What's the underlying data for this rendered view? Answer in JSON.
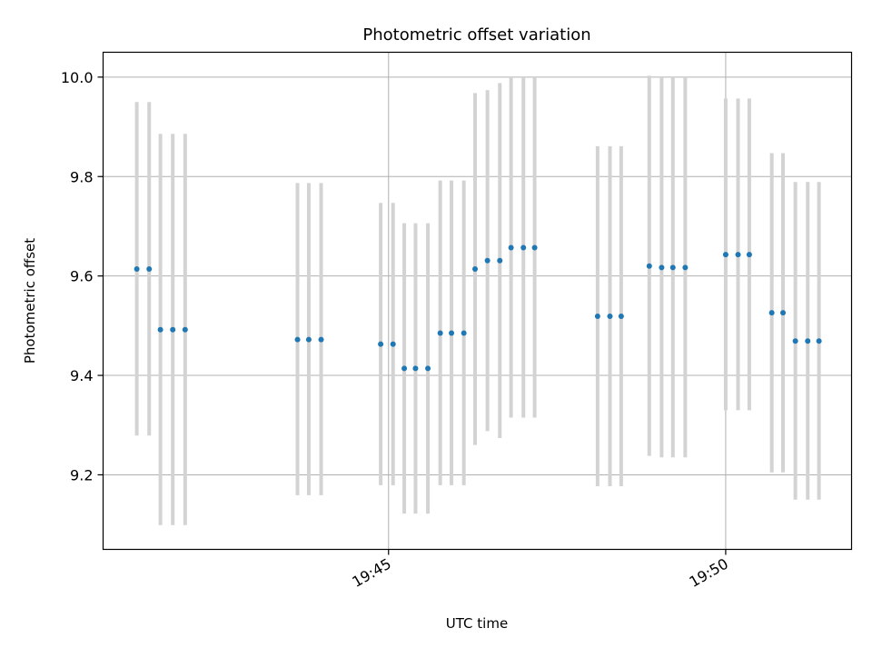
{
  "chart_data": {
    "type": "scatter",
    "title": "Photometric offset variation",
    "xlabel": "UTC time",
    "ylabel": "Photometric offset",
    "x_axis_kind": "time",
    "x_tick_values": [
      "19:45",
      "19:50"
    ],
    "x_tick_labels": [
      "19:45",
      "19:50"
    ],
    "xlim": [
      "19:40:46",
      "19:51:52"
    ],
    "y_ticks": [
      9.2,
      9.4,
      9.6,
      9.8,
      10.0
    ],
    "y_tick_labels": [
      "9.2",
      "9.4",
      "9.6",
      "9.8",
      "10.0"
    ],
    "ylim": [
      9.05,
      10.05
    ],
    "grid": true,
    "point_color": "#1f77b4",
    "errorbar_color": "#d3d3d3",
    "points": [
      {
        "x": "19:41:16",
        "y": 9.614,
        "lo": 9.279,
        "hi": 9.95
      },
      {
        "x": "19:41:27",
        "y": 9.614,
        "lo": 9.279,
        "hi": 9.95
      },
      {
        "x": "19:41:37",
        "y": 9.492,
        "lo": 9.099,
        "hi": 9.886
      },
      {
        "x": "19:41:48",
        "y": 9.492,
        "lo": 9.099,
        "hi": 9.886
      },
      {
        "x": "19:41:59",
        "y": 9.492,
        "lo": 9.099,
        "hi": 9.886
      },
      {
        "x": "19:43:39",
        "y": 9.472,
        "lo": 9.159,
        "hi": 9.787
      },
      {
        "x": "19:43:49",
        "y": 9.472,
        "lo": 9.159,
        "hi": 9.787
      },
      {
        "x": "19:44:00",
        "y": 9.472,
        "lo": 9.159,
        "hi": 9.787
      },
      {
        "x": "19:44:53",
        "y": 9.463,
        "lo": 9.179,
        "hi": 9.747
      },
      {
        "x": "19:45:04",
        "y": 9.463,
        "lo": 9.179,
        "hi": 9.747
      },
      {
        "x": "19:45:14",
        "y": 9.414,
        "lo": 9.122,
        "hi": 9.706
      },
      {
        "x": "19:45:24",
        "y": 9.414,
        "lo": 9.122,
        "hi": 9.706
      },
      {
        "x": "19:45:35",
        "y": 9.414,
        "lo": 9.122,
        "hi": 9.706
      },
      {
        "x": "19:45:46",
        "y": 9.485,
        "lo": 9.179,
        "hi": 9.792
      },
      {
        "x": "19:45:56",
        "y": 9.485,
        "lo": 9.179,
        "hi": 9.792
      },
      {
        "x": "19:46:07",
        "y": 9.485,
        "lo": 9.179,
        "hi": 9.792
      },
      {
        "x": "19:46:17",
        "y": 9.614,
        "lo": 9.26,
        "hi": 9.968
      },
      {
        "x": "19:46:28",
        "y": 9.631,
        "lo": 9.288,
        "hi": 9.974
      },
      {
        "x": "19:46:39",
        "y": 9.631,
        "lo": 9.274,
        "hi": 9.988
      },
      {
        "x": "19:46:49",
        "y": 9.657,
        "lo": 9.315,
        "hi": 10.0
      },
      {
        "x": "19:47:00",
        "y": 9.657,
        "lo": 9.315,
        "hi": 10.0
      },
      {
        "x": "19:47:10",
        "y": 9.657,
        "lo": 9.315,
        "hi": 10.0
      },
      {
        "x": "19:48:06",
        "y": 9.519,
        "lo": 9.177,
        "hi": 9.861
      },
      {
        "x": "19:48:17",
        "y": 9.519,
        "lo": 9.177,
        "hi": 9.861
      },
      {
        "x": "19:48:27",
        "y": 9.519,
        "lo": 9.177,
        "hi": 9.861
      },
      {
        "x": "19:48:52",
        "y": 9.62,
        "lo": 9.238,
        "hi": 10.003
      },
      {
        "x": "19:49:03",
        "y": 9.617,
        "lo": 9.235,
        "hi": 10.0
      },
      {
        "x": "19:49:13",
        "y": 9.617,
        "lo": 9.235,
        "hi": 10.0
      },
      {
        "x": "19:49:24",
        "y": 9.617,
        "lo": 9.235,
        "hi": 10.0
      },
      {
        "x": "19:50:00",
        "y": 9.643,
        "lo": 9.33,
        "hi": 9.957
      },
      {
        "x": "19:50:11",
        "y": 9.643,
        "lo": 9.33,
        "hi": 9.957
      },
      {
        "x": "19:50:21",
        "y": 9.643,
        "lo": 9.33,
        "hi": 9.957
      },
      {
        "x": "19:50:41",
        "y": 9.526,
        "lo": 9.205,
        "hi": 9.847
      },
      {
        "x": "19:50:51",
        "y": 9.526,
        "lo": 9.205,
        "hi": 9.847
      },
      {
        "x": "19:51:02",
        "y": 9.469,
        "lo": 9.15,
        "hi": 9.789
      },
      {
        "x": "19:51:13",
        "y": 9.469,
        "lo": 9.15,
        "hi": 9.789
      },
      {
        "x": "19:51:23",
        "y": 9.469,
        "lo": 9.15,
        "hi": 9.789
      }
    ]
  }
}
